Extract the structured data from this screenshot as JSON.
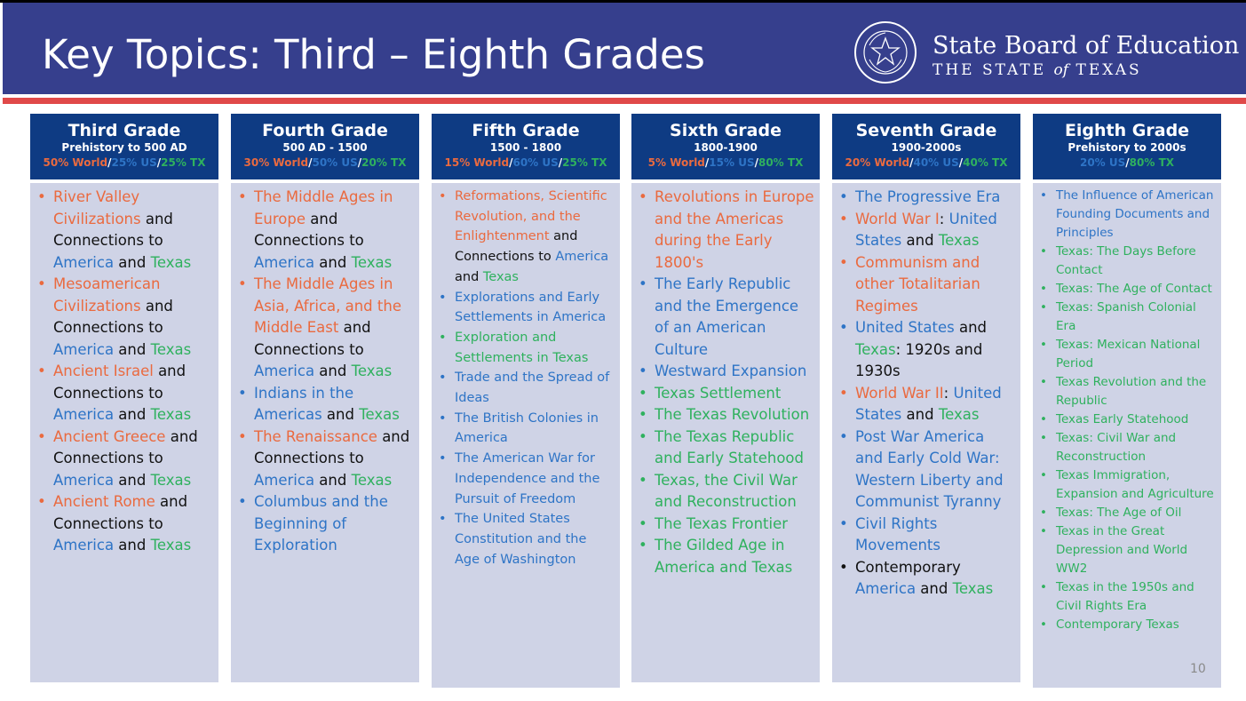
{
  "header": {
    "title": "Key Topics: Third – Eighth Grades",
    "org_line1": "State Board of Education",
    "org_line2_a": "THE STATE ",
    "org_line2_b": "of",
    "org_line2_c": " TEXAS",
    "seal_icon": "texas-state-seal-icon",
    "seal_text": "THE STATE OF TEXAS • State Board of Education"
  },
  "colors": {
    "header_bg": "#363f8d",
    "accent_red": "#e04949",
    "column_head": "#0e3b83",
    "column_body": "#cfd3e6",
    "world": "#ea6a3f",
    "us": "#2e74c6",
    "tx": "#2fb15e"
  },
  "slide_number": "10",
  "columns": [
    {
      "name": "Third Grade",
      "range": "Prehistory to 500 AD",
      "pct": [
        {
          "t": "50% World",
          "c": "o"
        },
        {
          "t": "/",
          "c": "w"
        },
        {
          "t": "25% US",
          "c": "b"
        },
        {
          "t": "/",
          "c": "w"
        },
        {
          "t": "25% TX",
          "c": "g"
        }
      ],
      "items": [
        {
          "dot": "o",
          "segs": [
            {
              "t": "River Valley Civilizations",
              "c": "o"
            },
            {
              "t": " and Connections to ",
              "c": "k"
            },
            {
              "t": "America",
              "c": "b"
            },
            {
              "t": " and ",
              "c": "k"
            },
            {
              "t": "Texas",
              "c": "g"
            }
          ]
        },
        {
          "dot": "o",
          "segs": [
            {
              "t": "Mesoamerican Civilizations",
              "c": "o"
            },
            {
              "t": " and Connections to ",
              "c": "k"
            },
            {
              "t": "America",
              "c": "b"
            },
            {
              "t": " and ",
              "c": "k"
            },
            {
              "t": "Texas",
              "c": "g"
            }
          ]
        },
        {
          "dot": "o",
          "segs": [
            {
              "t": "Ancient Israel",
              "c": "o"
            },
            {
              "t": " and Connections to ",
              "c": "k"
            },
            {
              "t": "America",
              "c": "b"
            },
            {
              "t": " and ",
              "c": "k"
            },
            {
              "t": "Texas",
              "c": "g"
            }
          ]
        },
        {
          "dot": "o",
          "segs": [
            {
              "t": "Ancient Greece",
              "c": "o"
            },
            {
              "t": " and Connections to ",
              "c": "k"
            },
            {
              "t": "America",
              "c": "b"
            },
            {
              "t": " and ",
              "c": "k"
            },
            {
              "t": "Texas",
              "c": "g"
            }
          ]
        },
        {
          "dot": "o",
          "segs": [
            {
              "t": "Ancient Rome",
              "c": "o"
            },
            {
              "t": " and Connections to ",
              "c": "k"
            },
            {
              "t": "America",
              "c": "b"
            },
            {
              "t": " and ",
              "c": "k"
            },
            {
              "t": "Texas",
              "c": "g"
            }
          ]
        }
      ]
    },
    {
      "name": "Fourth Grade",
      "range": "500 AD - 1500",
      "pct": [
        {
          "t": "30% World",
          "c": "o"
        },
        {
          "t": "/",
          "c": "w"
        },
        {
          "t": "50% US",
          "c": "b"
        },
        {
          "t": "/",
          "c": "w"
        },
        {
          "t": "20% TX",
          "c": "g"
        }
      ],
      "items": [
        {
          "dot": "o",
          "segs": [
            {
              "t": "The Middle Ages in Europe",
              "c": "o"
            },
            {
              "t": " and Connections to ",
              "c": "k"
            },
            {
              "t": "America",
              "c": "b"
            },
            {
              "t": " and ",
              "c": "k"
            },
            {
              "t": "Texas",
              "c": "g"
            }
          ]
        },
        {
          "dot": "o",
          "segs": [
            {
              "t": "The Middle Ages in Asia, Africa, and the Middle East",
              "c": "o"
            },
            {
              "t": " and Connections to ",
              "c": "k"
            },
            {
              "t": "America",
              "c": "b"
            },
            {
              "t": " and ",
              "c": "k"
            },
            {
              "t": "Texas",
              "c": "g"
            }
          ]
        },
        {
          "dot": "b",
          "segs": [
            {
              "t": "Indians in the Americas",
              "c": "b"
            },
            {
              "t": " and ",
              "c": "k"
            },
            {
              "t": "Texas",
              "c": "g"
            }
          ]
        },
        {
          "dot": "o",
          "segs": [
            {
              "t": "The Renaissance",
              "c": "o"
            },
            {
              "t": " and Connections to ",
              "c": "k"
            },
            {
              "t": "America",
              "c": "b"
            },
            {
              "t": " and ",
              "c": "k"
            },
            {
              "t": "Texas",
              "c": "g"
            }
          ]
        },
        {
          "dot": "b",
          "segs": [
            {
              "t": "Columbus and the Beginning of Exploration",
              "c": "b"
            }
          ]
        }
      ]
    },
    {
      "name": "Fifth Grade",
      "range": "1500 - 1800",
      "pct": [
        {
          "t": "15% World",
          "c": "o"
        },
        {
          "t": "/",
          "c": "w"
        },
        {
          "t": "60% US",
          "c": "b"
        },
        {
          "t": "/",
          "c": "w"
        },
        {
          "t": "25% TX",
          "c": "g"
        }
      ],
      "items": [
        {
          "dot": "o",
          "segs": [
            {
              "t": "Reformations, Scientific Revolution, and the Enlightenment",
              "c": "o"
            },
            {
              "t": " and Connections to ",
              "c": "k"
            },
            {
              "t": "America",
              "c": "b"
            },
            {
              "t": " and ",
              "c": "k"
            },
            {
              "t": "Texas",
              "c": "g"
            }
          ]
        },
        {
          "dot": "b",
          "segs": [
            {
              "t": "Explorations and Early Settlements in America",
              "c": "b"
            }
          ]
        },
        {
          "dot": "g",
          "segs": [
            {
              "t": "Exploration and Settlements in Texas",
              "c": "g"
            }
          ]
        },
        {
          "dot": "b",
          "segs": [
            {
              "t": "Trade and the Spread of Ideas",
              "c": "b"
            }
          ]
        },
        {
          "dot": "b",
          "segs": [
            {
              "t": "The British Colonies in America",
              "c": "b"
            }
          ]
        },
        {
          "dot": "b",
          "segs": [
            {
              "t": "The American War for Independence and the Pursuit of Freedom",
              "c": "b"
            }
          ]
        },
        {
          "dot": "b",
          "segs": [
            {
              "t": "The United States Constitution and the Age of Washington",
              "c": "b"
            }
          ]
        }
      ]
    },
    {
      "name": "Sixth Grade",
      "range": "1800-1900",
      "pct": [
        {
          "t": "5% World",
          "c": "o"
        },
        {
          "t": "/",
          "c": "w"
        },
        {
          "t": "15% US",
          "c": "b"
        },
        {
          "t": "/",
          "c": "w"
        },
        {
          "t": "80% TX",
          "c": "g"
        }
      ],
      "items": [
        {
          "dot": "o",
          "segs": [
            {
              "t": "Revolutions in Europe and the Americas during the Early 1800's",
              "c": "o"
            }
          ]
        },
        {
          "dot": "b",
          "segs": [
            {
              "t": "The Early Republic and the Emergence of an American Culture",
              "c": "b"
            }
          ]
        },
        {
          "dot": "b",
          "segs": [
            {
              "t": "Westward Expansion",
              "c": "b"
            }
          ]
        },
        {
          "dot": "g",
          "segs": [
            {
              "t": "Texas Settlement",
              "c": "g"
            }
          ]
        },
        {
          "dot": "g",
          "segs": [
            {
              "t": "The Texas Revolution",
              "c": "g"
            }
          ]
        },
        {
          "dot": "g",
          "segs": [
            {
              "t": "The Texas Republic and Early Statehood",
              "c": "g"
            }
          ]
        },
        {
          "dot": "g",
          "segs": [
            {
              "t": "Texas, the Civil War and Reconstruction",
              "c": "g"
            }
          ]
        },
        {
          "dot": "g",
          "segs": [
            {
              "t": "The Texas Frontier",
              "c": "g"
            }
          ]
        },
        {
          "dot": "g",
          "segs": [
            {
              "t": "The Gilded Age in America and Texas",
              "c": "g"
            }
          ]
        }
      ]
    },
    {
      "name": "Seventh Grade",
      "range": "1900-2000s",
      "pct": [
        {
          "t": "20% World",
          "c": "o"
        },
        {
          "t": "/",
          "c": "w"
        },
        {
          "t": "40% US",
          "c": "b"
        },
        {
          "t": "/",
          "c": "w"
        },
        {
          "t": "40% TX",
          "c": "g"
        }
      ],
      "items": [
        {
          "dot": "b",
          "segs": [
            {
              "t": "The Progressive Era",
              "c": "b"
            }
          ]
        },
        {
          "dot": "o",
          "segs": [
            {
              "t": "World War I",
              "c": "o"
            },
            {
              "t": ": ",
              "c": "k"
            },
            {
              "t": "United States",
              "c": "b"
            },
            {
              "t": " and ",
              "c": "k"
            },
            {
              "t": "Texas",
              "c": "g"
            }
          ]
        },
        {
          "dot": "o",
          "segs": [
            {
              "t": "Communism and other Totalitarian Regimes",
              "c": "o"
            }
          ]
        },
        {
          "dot": "b",
          "segs": [
            {
              "t": "United States",
              "c": "b"
            },
            {
              "t": " and ",
              "c": "k"
            },
            {
              "t": "Texas",
              "c": "g"
            },
            {
              "t": ": 1920s and 1930s",
              "c": "k"
            }
          ]
        },
        {
          "dot": "o",
          "segs": [
            {
              "t": "World War II",
              "c": "o"
            },
            {
              "t": ": ",
              "c": "k"
            },
            {
              "t": "United States",
              "c": "b"
            },
            {
              "t": " and ",
              "c": "k"
            },
            {
              "t": "Texas",
              "c": "g"
            }
          ]
        },
        {
          "dot": "b",
          "segs": [
            {
              "t": "Post War America and Early Cold War: Western Liberty and Communist Tyranny",
              "c": "b"
            }
          ]
        },
        {
          "dot": "b",
          "segs": [
            {
              "t": "Civil Rights Movements",
              "c": "b"
            }
          ]
        },
        {
          "dot": "k",
          "segs": [
            {
              "t": "Contemporary ",
              "c": "k"
            },
            {
              "t": "America",
              "c": "b"
            },
            {
              "t": " and ",
              "c": "k"
            },
            {
              "t": "Texas",
              "c": "g"
            }
          ]
        }
      ]
    },
    {
      "name": "Eighth Grade",
      "range": "Prehistory to 2000s",
      "pct": [
        {
          "t": "20% US",
          "c": "b"
        },
        {
          "t": "/",
          "c": "w"
        },
        {
          "t": "80% TX",
          "c": "g"
        }
      ],
      "items": [
        {
          "dot": "b",
          "segs": [
            {
              "t": "The Influence of American Founding Documents and Principles",
              "c": "b"
            }
          ]
        },
        {
          "dot": "g",
          "segs": [
            {
              "t": "Texas: The Days Before Contact",
              "c": "g"
            }
          ]
        },
        {
          "dot": "g",
          "segs": [
            {
              "t": "Texas: The Age of Contact",
              "c": "g"
            }
          ]
        },
        {
          "dot": "g",
          "segs": [
            {
              "t": "Texas: Spanish Colonial Era",
              "c": "g"
            }
          ]
        },
        {
          "dot": "g",
          "segs": [
            {
              "t": "Texas: Mexican National Period",
              "c": "g"
            }
          ]
        },
        {
          "dot": "g",
          "segs": [
            {
              "t": "Texas Revolution and the Republic",
              "c": "g"
            }
          ]
        },
        {
          "dot": "g",
          "segs": [
            {
              "t": "Texas Early Statehood",
              "c": "g"
            }
          ]
        },
        {
          "dot": "g",
          "segs": [
            {
              "t": "Texas: Civil War and Reconstruction",
              "c": "g"
            }
          ]
        },
        {
          "dot": "g",
          "segs": [
            {
              "t": "Texas Immigration, Expansion and Agriculture",
              "c": "g"
            }
          ]
        },
        {
          "dot": "g",
          "segs": [
            {
              "t": "Texas: The Age of Oil",
              "c": "g"
            }
          ]
        },
        {
          "dot": "g",
          "segs": [
            {
              "t": "Texas in the Great Depression and World WW2",
              "c": "g"
            }
          ]
        },
        {
          "dot": "g",
          "segs": [
            {
              "t": "Texas in the 1950s and Civil Rights Era",
              "c": "g"
            }
          ]
        },
        {
          "dot": "g",
          "segs": [
            {
              "t": "Contemporary Texas",
              "c": "g"
            }
          ]
        }
      ]
    }
  ]
}
